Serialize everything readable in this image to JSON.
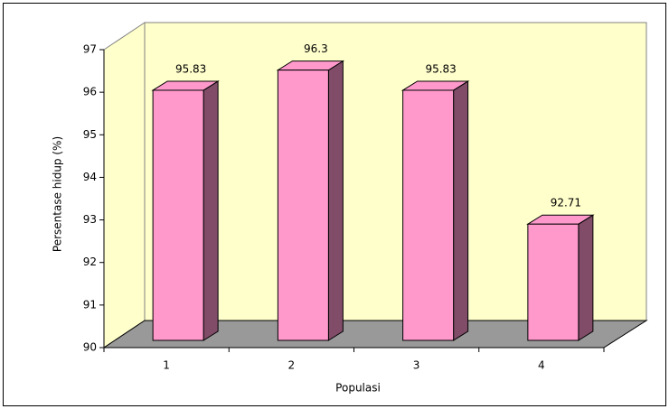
{
  "chart_data": {
    "type": "bar3d",
    "x_label": "Populasi",
    "y_label": "Persentase hidup (%)",
    "categories": [
      "1",
      "2",
      "3",
      "4"
    ],
    "values": [
      95.83,
      96.3,
      95.83,
      92.71
    ],
    "color": "#ff99cc",
    "ylim": [
      90,
      97
    ],
    "yticks": [
      90,
      91,
      92,
      93,
      94,
      95,
      96,
      97
    ],
    "grid": false
  }
}
